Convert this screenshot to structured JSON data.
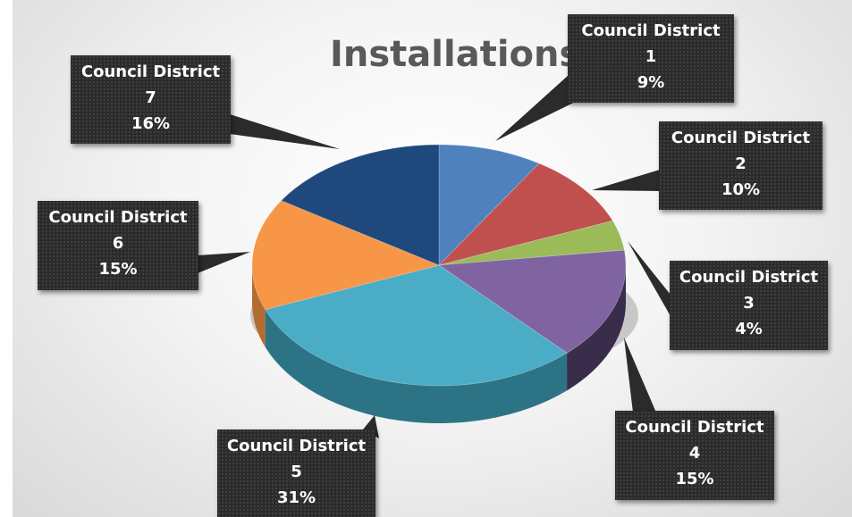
{
  "chart_data": {
    "type": "pie",
    "title": "Installations",
    "style": "3d",
    "slices": [
      {
        "label": "Council District 1",
        "name": "Council District",
        "num": "1",
        "pct_text": "9%",
        "value": 9,
        "color": "#4F81BD",
        "side_color": "#3A6594"
      },
      {
        "label": "Council District 2",
        "name": "Council District",
        "num": "2",
        "pct_text": "10%",
        "value": 10,
        "color": "#C0504D",
        "side_color": "#8E3B39"
      },
      {
        "label": "Council District 3",
        "name": "Council District",
        "num": "3",
        "pct_text": "4%",
        "value": 4,
        "color": "#9BBB59",
        "side_color": "#718A40"
      },
      {
        "label": "Council District 4",
        "name": "Council District",
        "num": "4",
        "pct_text": "15%",
        "value": 15,
        "color": "#8064A2",
        "side_color": "#3A2D4B"
      },
      {
        "label": "Council District 5",
        "name": "Council District",
        "num": "5",
        "pct_text": "31%",
        "value": 31,
        "color": "#4BACC6",
        "side_color": "#2D7386"
      },
      {
        "label": "Council District 6",
        "name": "Council District",
        "num": "6",
        "pct_text": "15%",
        "value": 15,
        "color": "#F79646",
        "side_color": "#B46C30"
      },
      {
        "label": "Council District 7",
        "name": "Council District",
        "num": "7",
        "pct_text": "16%",
        "value": 16,
        "color": "#1F497D",
        "side_color": "#16355A"
      }
    ]
  }
}
